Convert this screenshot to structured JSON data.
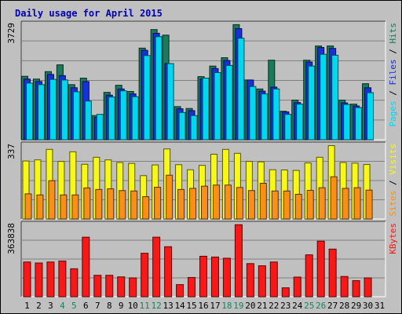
{
  "title": "Daily usage for April 2015",
  "colors": {
    "hits": "#1a7a5a",
    "files": "#1830d8",
    "pages": "#00d8f0",
    "visits": "#f8f818",
    "sites": "#f89018",
    "kbytes": "#f81818",
    "weekend_label": "#188060",
    "weekday_label": "#000000",
    "grid": "#808080",
    "background": "#c0c0c0"
  },
  "chart_data": [
    {
      "type": "bar",
      "panel": "hits-files-pages",
      "max_label": "3729",
      "ylim": [
        0,
        3729
      ],
      "legend": {
        "placement": "right",
        "parts": [
          "Pages",
          "Files",
          "Hits"
        ],
        "separator": " / "
      },
      "categories": [
        "1",
        "2",
        "3",
        "4",
        "5",
        "6",
        "7",
        "8",
        "9",
        "10",
        "11",
        "12",
        "13",
        "14",
        "15",
        "16",
        "17",
        "18",
        "19",
        "20",
        "21",
        "22",
        "23",
        "24",
        "25",
        "26",
        "27",
        "28",
        "29",
        "30",
        "31"
      ],
      "weekend_days": [
        "4",
        "5",
        "11",
        "12",
        "18",
        "19",
        "25",
        "26"
      ],
      "series": [
        {
          "name": "Hits",
          "values": [
            2050,
            1960,
            2200,
            2420,
            1780,
            1990,
            780,
            1530,
            1760,
            1560,
            2960,
            3560,
            3380,
            1070,
            1010,
            2040,
            2380,
            2650,
            3720,
            1930,
            1640,
            2570,
            920,
            1280,
            2570,
            3030,
            3030,
            1280,
            1150,
            1810,
            0
          ]
        },
        {
          "name": "Files",
          "values": [
            1960,
            1880,
            2110,
            2070,
            1680,
            1880,
            720,
            1440,
            1640,
            1480,
            2890,
            3440,
            2460,
            1000,
            940,
            1960,
            2300,
            2560,
            3590,
            1930,
            1570,
            1700,
            900,
            1200,
            2510,
            2980,
            2950,
            1190,
            1090,
            1680,
            0
          ]
        },
        {
          "name": "Pages",
          "values": [
            1830,
            1780,
            1950,
            1930,
            1550,
            1250,
            820,
            1380,
            1580,
            1390,
            2720,
            3330,
            2460,
            880,
            780,
            1990,
            2170,
            2400,
            3280,
            1720,
            1480,
            1640,
            820,
            1150,
            2380,
            2760,
            2730,
            1140,
            1040,
            1520,
            0
          ]
        }
      ]
    },
    {
      "type": "bar",
      "panel": "visits-sites",
      "max_label": "337",
      "ylim": [
        0,
        337
      ],
      "legend": {
        "placement": "right",
        "parts": [
          "Sites",
          "Visits"
        ],
        "separator": " / "
      },
      "categories": [
        "1",
        "2",
        "3",
        "4",
        "5",
        "6",
        "7",
        "8",
        "9",
        "10",
        "11",
        "12",
        "13",
        "14",
        "15",
        "16",
        "17",
        "18",
        "19",
        "20",
        "21",
        "22",
        "23",
        "24",
        "25",
        "26",
        "27",
        "28",
        "29",
        "30",
        "31"
      ],
      "series": [
        {
          "name": "Visits",
          "values": [
            265,
            270,
            318,
            263,
            307,
            250,
            282,
            270,
            258,
            254,
            198,
            247,
            320,
            248,
            225,
            245,
            296,
            318,
            300,
            263,
            261,
            225,
            224,
            222,
            256,
            282,
            335,
            258,
            255,
            249,
            0
          ]
        },
        {
          "name": "Sites",
          "values": [
            115,
            110,
            175,
            110,
            110,
            142,
            135,
            138,
            130,
            128,
            102,
            145,
            200,
            135,
            140,
            150,
            155,
            155,
            144,
            130,
            163,
            128,
            128,
            113,
            131,
            143,
            193,
            140,
            143,
            132,
            0
          ]
        }
      ]
    },
    {
      "type": "bar",
      "panel": "kbytes",
      "max_label": "363838",
      "ylim": [
        0,
        363838
      ],
      "legend": {
        "placement": "right",
        "parts": [
          "KBytes"
        ],
        "separator": ""
      },
      "categories": [
        "1",
        "2",
        "3",
        "4",
        "5",
        "6",
        "7",
        "8",
        "9",
        "10",
        "11",
        "12",
        "13",
        "14",
        "15",
        "16",
        "17",
        "18",
        "19",
        "20",
        "21",
        "22",
        "23",
        "24",
        "25",
        "26",
        "27",
        "28",
        "29",
        "30",
        "31"
      ],
      "series": [
        {
          "name": "KBytes",
          "values": [
            175000,
            170000,
            175000,
            180000,
            141000,
            300000,
            108000,
            108000,
            100000,
            95000,
            219000,
            300000,
            252000,
            61000,
            97000,
            204000,
            200000,
            194000,
            363000,
            167000,
            156000,
            175000,
            45000,
            99000,
            211000,
            280000,
            240000,
            102000,
            81000,
            95000,
            0
          ]
        }
      ]
    }
  ]
}
